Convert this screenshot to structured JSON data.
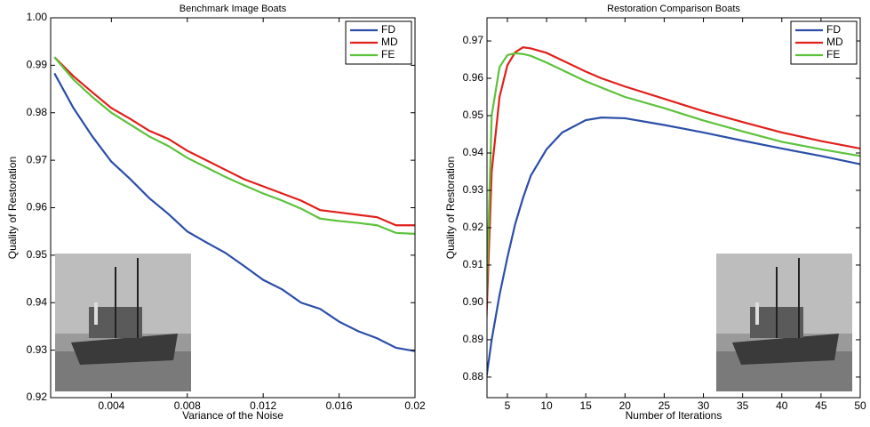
{
  "chart_data": [
    {
      "type": "line",
      "title": "Benchmark Image Boats",
      "x_label": "Variance of the Noise",
      "y_label": "Quality of Restoration",
      "x": [
        0.001,
        0.002,
        0.003,
        0.004,
        0.005,
        0.006,
        0.007,
        0.008,
        0.009,
        0.01,
        0.011,
        0.012,
        0.013,
        0.014,
        0.015,
        0.016,
        0.017,
        0.018,
        0.019,
        0.02
      ],
      "series": [
        {
          "name": "FD",
          "color": "#2b4ea8",
          "values": [
            0.9883,
            0.981,
            0.975,
            0.9697,
            0.966,
            0.962,
            0.9587,
            0.955,
            0.9527,
            0.9505,
            0.9477,
            0.9448,
            0.9428,
            0.94,
            0.9387,
            0.936,
            0.934,
            0.9325,
            0.9305,
            0.9298
          ]
        },
        {
          "name": "MD",
          "color": "#e0201b",
          "values": [
            0.9917,
            0.9877,
            0.9843,
            0.981,
            0.9787,
            0.9762,
            0.9745,
            0.972,
            0.97,
            0.968,
            0.966,
            0.9645,
            0.963,
            0.9615,
            0.9595,
            0.959,
            0.9585,
            0.958,
            0.9563,
            0.9563
          ]
        },
        {
          "name": "FE",
          "color": "#5dc23b",
          "values": [
            0.9917,
            0.987,
            0.9833,
            0.98,
            0.9775,
            0.975,
            0.973,
            0.9705,
            0.9685,
            0.9665,
            0.9647,
            0.963,
            0.9615,
            0.9598,
            0.9577,
            0.9572,
            0.9568,
            0.9563,
            0.9547,
            0.9545
          ]
        }
      ],
      "xlim": [
        0.0008,
        0.02
      ],
      "xticks": [
        0.004,
        0.008,
        0.012,
        0.016,
        0.02
      ],
      "ylim": [
        0.92,
        1
      ],
      "yticks": [
        0.92,
        0.93,
        0.94,
        0.95,
        0.96,
        0.97,
        0.98,
        0.99,
        {
          "value": 1,
          "label": "1.00"
        }
      ],
      "legend": "upper right",
      "grid": false
    },
    {
      "type": "line",
      "title": "Restoration Comparison Boats",
      "x_label": "Number of Iterations",
      "y_label": "Quality of Restoration",
      "x": [
        2,
        3,
        4,
        5,
        6,
        7,
        8,
        10,
        12,
        15,
        17,
        20,
        25,
        30,
        35,
        40,
        45,
        50
      ],
      "series": [
        {
          "name": "FD",
          "color": "#2b4ea8",
          "values": [
            0.875,
            0.89,
            0.902,
            0.912,
            0.921,
            0.928,
            0.934,
            0.941,
            0.9455,
            0.9488,
            0.9495,
            0.9493,
            0.9475,
            0.9455,
            0.9433,
            0.9412,
            0.9392,
            0.937
          ]
        },
        {
          "name": "MD",
          "color": "#e0201b",
          "values": [
            0.876,
            0.935,
            0.955,
            0.9635,
            0.967,
            0.9683,
            0.968,
            0.9668,
            0.9648,
            0.9618,
            0.96,
            0.9578,
            0.9545,
            0.9512,
            0.9483,
            0.9455,
            0.9432,
            0.9412
          ]
        },
        {
          "name": "FE",
          "color": "#5dc23b",
          "values": [
            0.876,
            0.95,
            0.963,
            0.9662,
            0.9667,
            0.9665,
            0.966,
            0.9642,
            0.9622,
            0.9592,
            0.9575,
            0.955,
            0.952,
            0.9487,
            0.9458,
            0.943,
            0.941,
            0.9392
          ]
        }
      ],
      "xlim": [
        2.4,
        50
      ],
      "xticks": [
        5,
        10,
        15,
        20,
        25,
        30,
        35,
        40,
        45,
        50
      ],
      "ylim": [
        0.8745,
        0.9762
      ],
      "yticks": [
        0.88,
        0.89,
        {
          "value": 0.9,
          "label": "0.90"
        },
        0.91,
        0.92,
        0.93,
        0.94,
        0.95,
        0.96,
        0.97
      ],
      "legend": "upper right",
      "grid": false
    }
  ]
}
